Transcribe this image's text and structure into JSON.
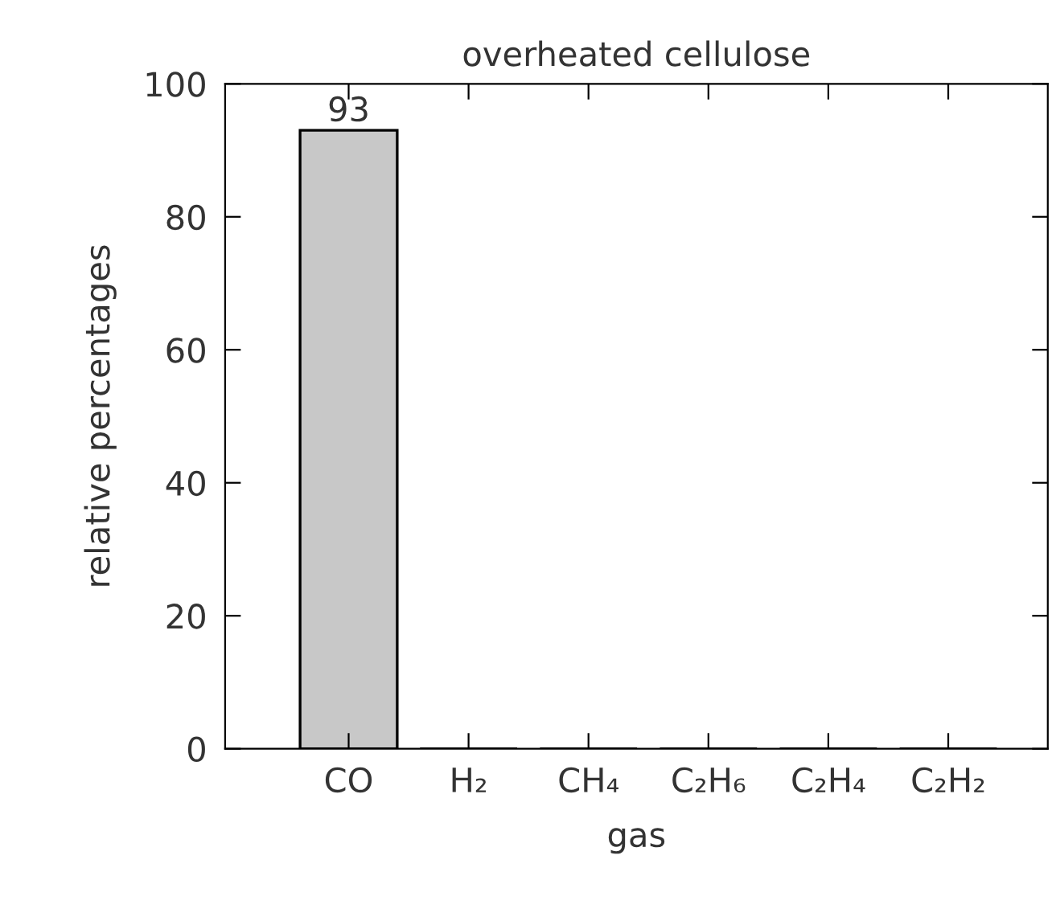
{
  "chart_data": {
    "type": "bar",
    "title": "overheated cellulose",
    "xlabel": "gas",
    "ylabel": "relative percentages",
    "categories": [
      "CO",
      "H₂",
      "CH₄",
      "C₂H₆",
      "C₂H₄",
      "C₂H₂"
    ],
    "values": [
      93,
      0,
      0,
      0,
      0,
      0
    ],
    "value_labels": [
      "93",
      null,
      null,
      null,
      null,
      null
    ],
    "color": "#c8c8c8",
    "ylim": [
      0,
      100
    ],
    "yticks": [
      0,
      20,
      40,
      60,
      80,
      100
    ],
    "grid": false
  }
}
